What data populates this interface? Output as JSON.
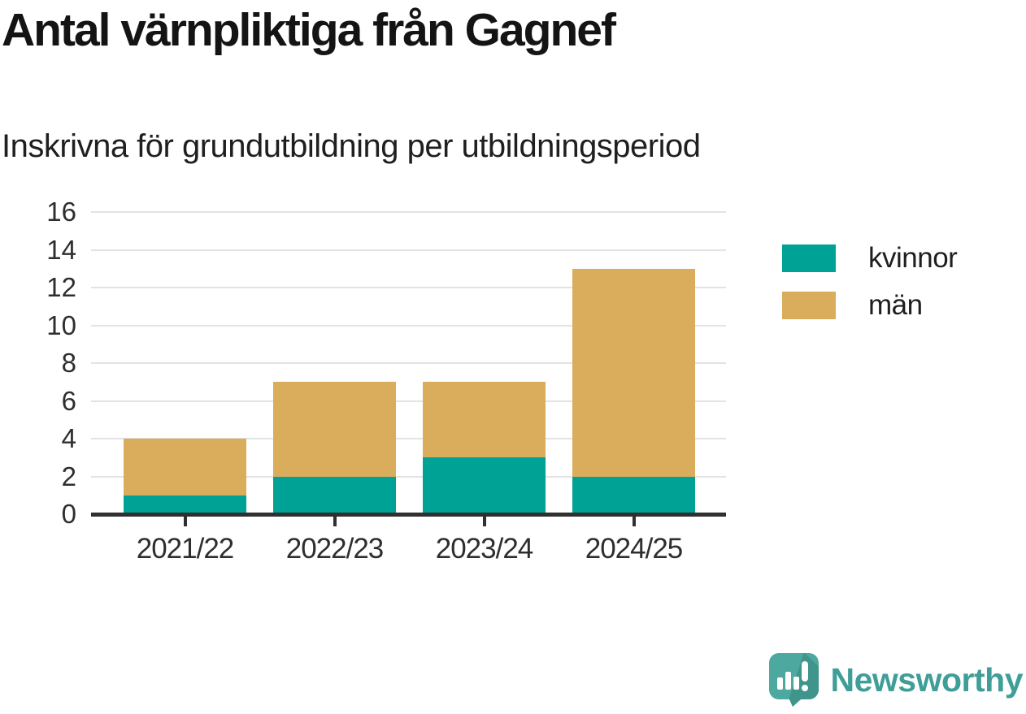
{
  "header": {
    "title": "Antal värnpliktiga från Gagnef",
    "subtitle": "Inskrivna för grundutbildning per utbildningsperiod"
  },
  "chart_data": {
    "type": "bar",
    "stacked": true,
    "title": "Antal värnpliktiga från Gagnef",
    "subtitle": "Inskrivna för grundutbildning per utbildningsperiod",
    "categories": [
      "2021/22",
      "2022/23",
      "2023/24",
      "2024/25"
    ],
    "series": [
      {
        "name": "kvinnor",
        "color": "#00a296",
        "values": [
          1,
          2,
          3,
          2
        ]
      },
      {
        "name": "män",
        "color": "#d9ad5b",
        "values": [
          3,
          5,
          4,
          11
        ]
      }
    ],
    "totals": [
      4,
      7,
      7,
      13
    ],
    "xlabel": "",
    "ylabel": "",
    "ylim": [
      0,
      16
    ],
    "ytick_step": 2,
    "grid": true,
    "grid_color": "#e3e3e3",
    "axis_color": "#303030",
    "legend_position": "top-right"
  },
  "footer": {
    "brand": "Newsworthy",
    "brand_color": "#3f9e98",
    "logo_icon": "speech-bubble-bar-chart-exclamation"
  }
}
